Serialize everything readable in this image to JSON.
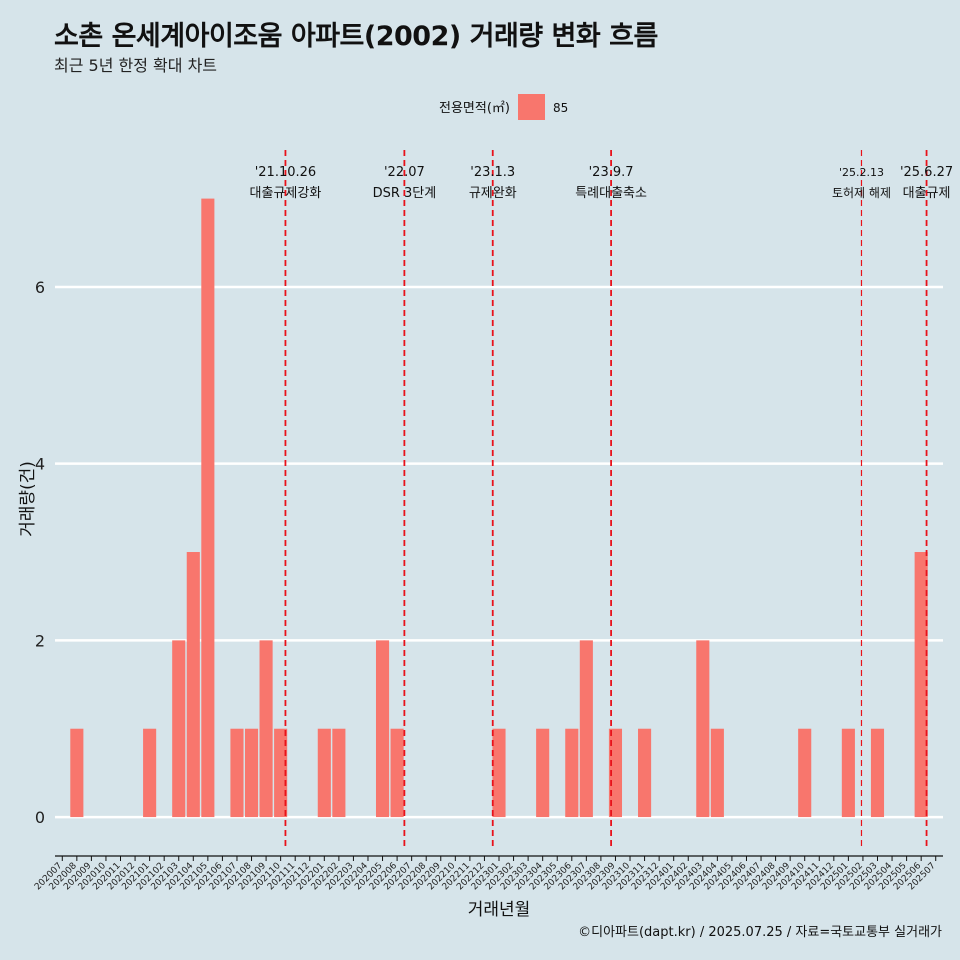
{
  "header": {
    "title": "소촌 온세계아이조움 아파트(2002) 거래량 변화 흐름",
    "subtitle": "최근 5년 한정 확대 차트"
  },
  "caption": "©디아파트(dapt.kr) / 2025.07.25 / 자료=국토교통부 실거래가",
  "colors": {
    "background": "#d6e4ea",
    "bar": "#f8766d",
    "event_line": "#e8111a",
    "grid": "#ffffff"
  },
  "chart_data": {
    "type": "bar",
    "title": "소촌 온세계아이조움 아파트(2002) 거래량 변화 흐름",
    "subtitle": "최근 5년 한정 확대 차트",
    "xlabel": "거래년월",
    "ylabel": "거래량(건)",
    "legend": {
      "title": "전용면적(㎡)",
      "position": "top",
      "entries": [
        {
          "label": "85",
          "color": "#f8766d"
        }
      ]
    },
    "ylim": [
      -0.35,
      7.55
    ],
    "yticks": [
      0,
      2,
      4,
      6
    ],
    "grid": true,
    "categories": [
      "202007",
      "202008",
      "202009",
      "202010",
      "202011",
      "202012",
      "202101",
      "202102",
      "202103",
      "202104",
      "202105",
      "202106",
      "202107",
      "202108",
      "202109",
      "202110",
      "202111",
      "202112",
      "202201",
      "202202",
      "202203",
      "202204",
      "202205",
      "202206",
      "202207",
      "202208",
      "202209",
      "202210",
      "202211",
      "202212",
      "202301",
      "202302",
      "202303",
      "202304",
      "202305",
      "202306",
      "202307",
      "202308",
      "202309",
      "202310",
      "202311",
      "202312",
      "202401",
      "202402",
      "202403",
      "202404",
      "202405",
      "202406",
      "202407",
      "202408",
      "202409",
      "202410",
      "202411",
      "202412",
      "202501",
      "202502",
      "202503",
      "202504",
      "202505",
      "202506",
      "202507"
    ],
    "series": [
      {
        "name": "85",
        "values": [
          0,
          1,
          0,
          0,
          0,
          0,
          1,
          0,
          2,
          3,
          7,
          0,
          1,
          1,
          2,
          1,
          0,
          0,
          1,
          1,
          0,
          0,
          2,
          1,
          0,
          0,
          0,
          0,
          0,
          0,
          1,
          0,
          0,
          1,
          0,
          1,
          2,
          0,
          1,
          0,
          1,
          0,
          0,
          0,
          2,
          1,
          0,
          0,
          0,
          0,
          0,
          1,
          0,
          0,
          1,
          0,
          1,
          0,
          0,
          3,
          0
        ]
      }
    ],
    "events": [
      {
        "date": "'21.10.26",
        "label": "대출규제강화",
        "at": "202110",
        "offset": 0.83,
        "weight": "major"
      },
      {
        "date": "'22.07",
        "label": "DSR 3단계",
        "at": "202207",
        "offset": 0.0,
        "weight": "major"
      },
      {
        "date": "'23.1.3",
        "label": "규제완화",
        "at": "202301",
        "offset": 0.07,
        "weight": "major"
      },
      {
        "date": "'23.9.7",
        "label": "특례대출축소",
        "at": "202309",
        "offset": 0.2,
        "weight": "major"
      },
      {
        "date": "'25.2.13",
        "label": "토허제 해제",
        "at": "202502",
        "offset": 0.4,
        "weight": "minor"
      },
      {
        "date": "'25.6.27",
        "label": "대출규제",
        "at": "202506",
        "offset": 0.87,
        "weight": "major"
      }
    ]
  }
}
